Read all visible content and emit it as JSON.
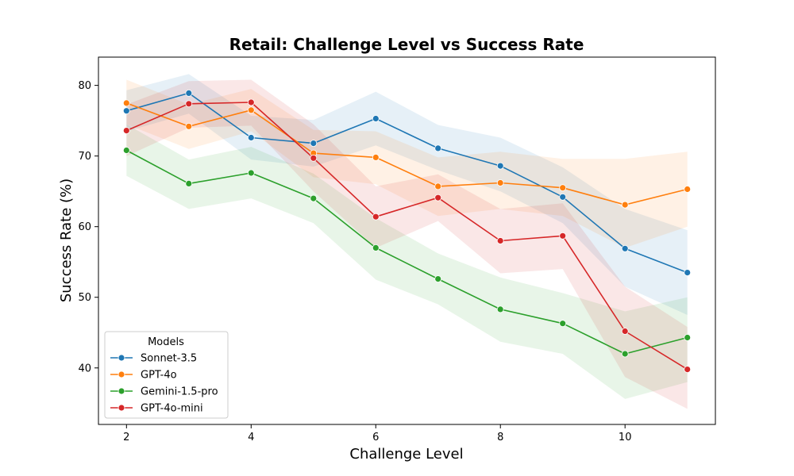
{
  "chart_data": {
    "type": "line",
    "title": "Retail: Challenge Level vs Success Rate",
    "xlabel": "Challenge Level",
    "ylabel": "Success Rate (%)",
    "x": [
      2,
      3,
      4,
      5,
      6,
      7,
      8,
      9,
      10,
      11
    ],
    "xlim": [
      1.55,
      11.45
    ],
    "ylim": [
      32,
      84
    ],
    "xticks": [
      2,
      4,
      6,
      8,
      10
    ],
    "yticks": [
      40,
      50,
      60,
      70,
      80
    ],
    "grid": false,
    "legend": {
      "title": "Models",
      "placement": "lower-left"
    },
    "series": [
      {
        "name": "Sonnet-3.5",
        "color": "#1f77b4",
        "values": [
          76.4,
          78.9,
          72.6,
          71.8,
          75.3,
          71.1,
          68.6,
          64.2,
          56.9,
          53.5
        ],
        "lower": [
          73.5,
          76.0,
          69.5,
          68.5,
          71.5,
          68.0,
          65.0,
          60.5,
          51.5,
          47.5
        ],
        "upper": [
          79.3,
          81.6,
          75.7,
          75.1,
          79.1,
          74.4,
          72.6,
          68.4,
          62.5,
          59.5
        ]
      },
      {
        "name": "GPT-4o",
        "color": "#ff7f0e",
        "values": [
          77.5,
          74.2,
          76.5,
          70.4,
          69.8,
          65.7,
          66.2,
          65.5,
          63.1,
          65.3
        ],
        "lower": [
          74.5,
          71.0,
          73.5,
          67.0,
          66.0,
          61.5,
          62.5,
          61.5,
          57.0,
          60.0
        ],
        "upper": [
          80.8,
          77.3,
          79.5,
          73.7,
          73.5,
          69.8,
          70.6,
          69.6,
          69.6,
          70.6
        ]
      },
      {
        "name": "Gemini-1.5-pro",
        "color": "#2ca02c",
        "values": [
          70.8,
          66.1,
          67.6,
          64.0,
          57.0,
          52.6,
          48.3,
          46.3,
          42.0,
          44.3
        ],
        "lower": [
          67.2,
          62.5,
          64.0,
          60.5,
          52.5,
          49.0,
          43.7,
          42.0,
          35.6,
          38.0
        ],
        "upper": [
          74.5,
          69.5,
          71.3,
          67.5,
          61.2,
          56.2,
          52.8,
          50.6,
          48.0,
          50.0
        ]
      },
      {
        "name": "GPT-4o-mini",
        "color": "#d62728",
        "values": [
          73.6,
          77.4,
          77.6,
          69.7,
          61.4,
          64.1,
          58.0,
          58.7,
          45.2,
          39.8
        ],
        "lower": [
          70.0,
          74.0,
          74.3,
          65.0,
          57.0,
          60.8,
          53.4,
          54.0,
          38.7,
          34.2
        ],
        "upper": [
          77.3,
          80.6,
          80.8,
          74.5,
          65.7,
          67.4,
          62.5,
          63.3,
          51.5,
          45.8
        ]
      }
    ]
  }
}
